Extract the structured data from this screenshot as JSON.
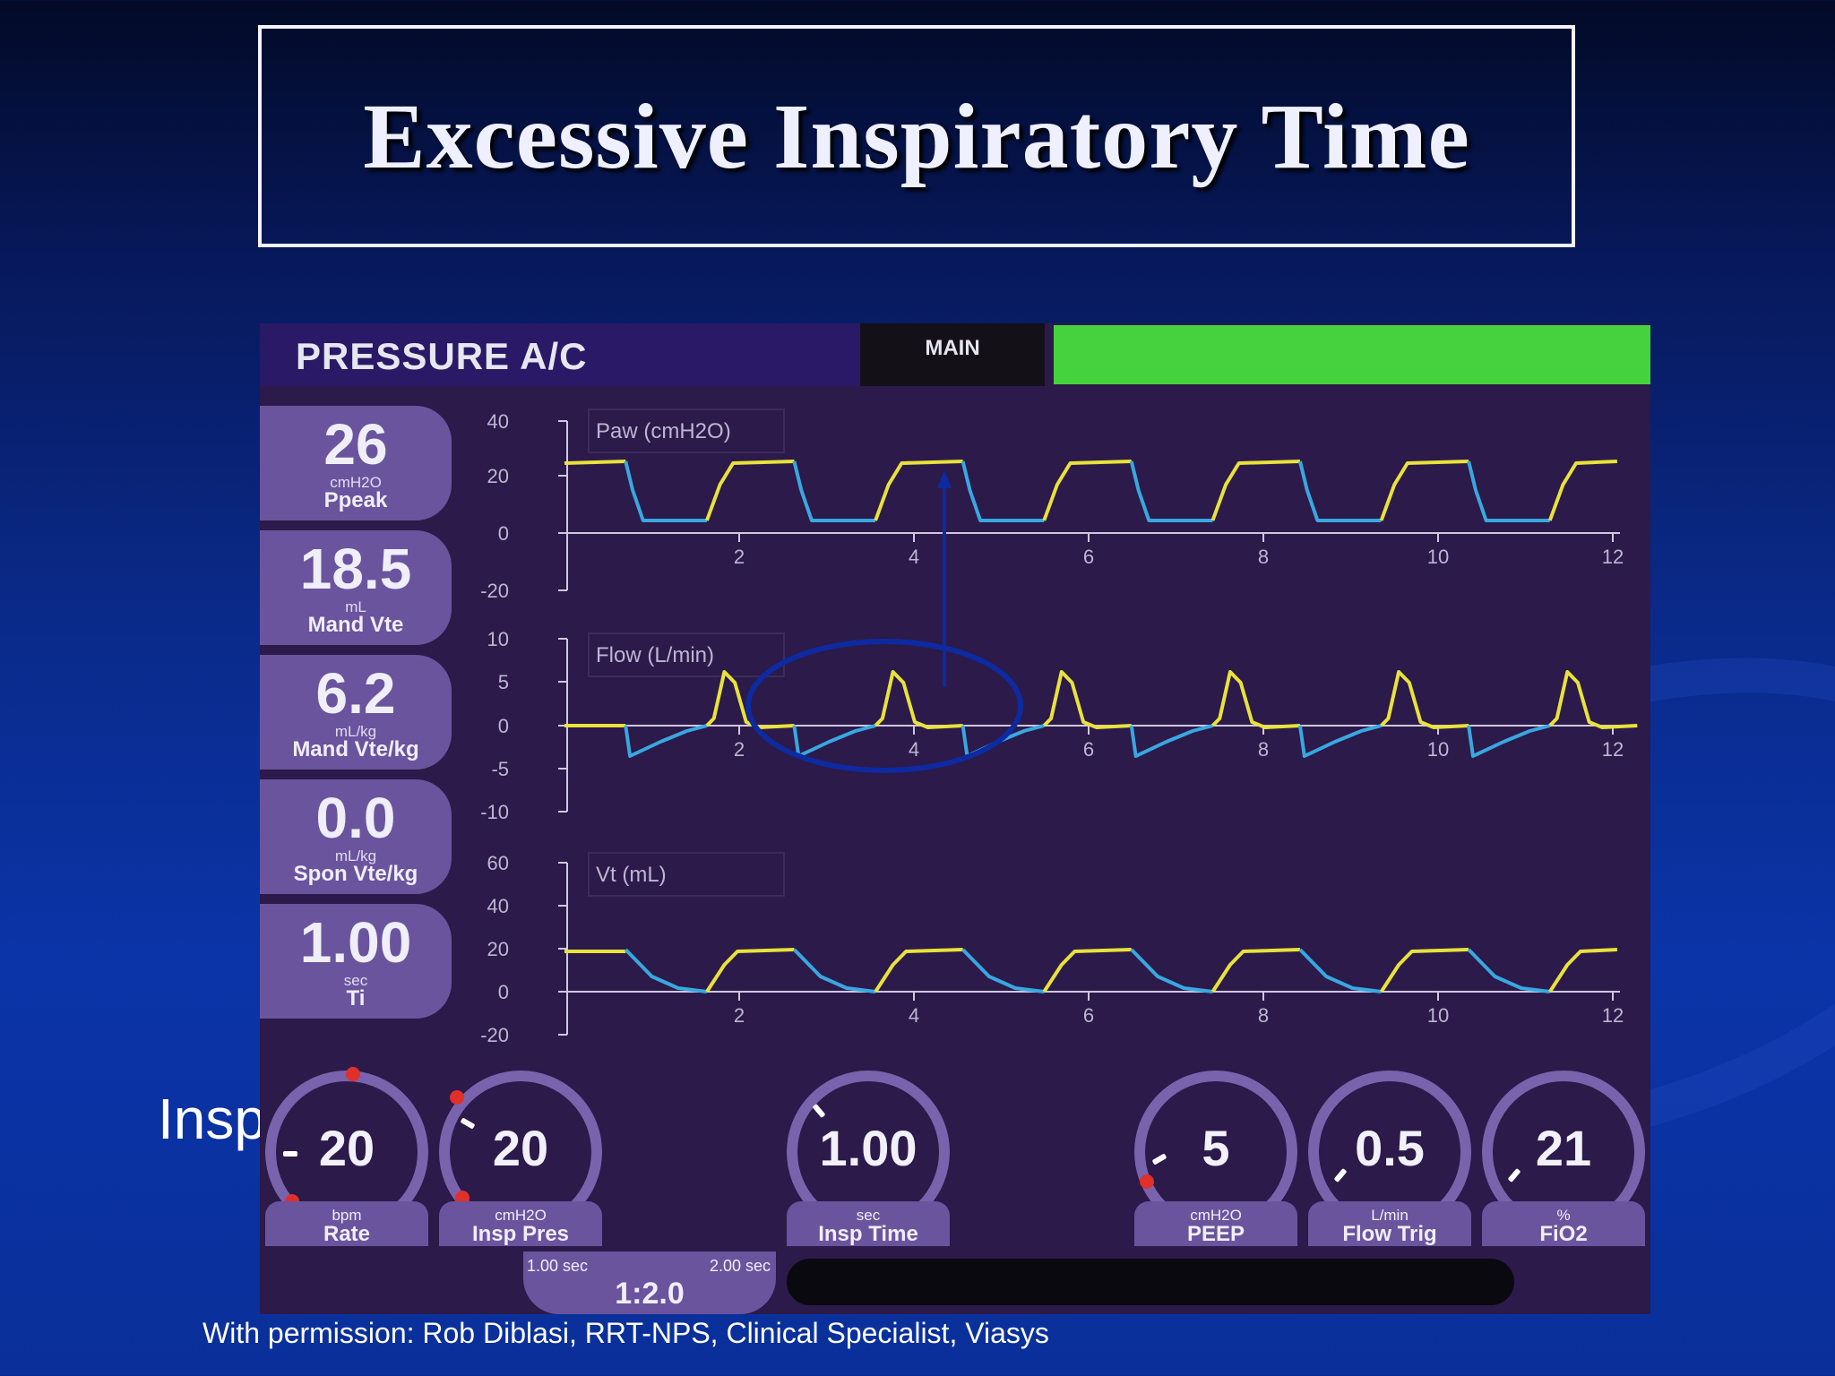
{
  "slide": {
    "title": "Excessive Inspiratory Time",
    "behind_text": "Insp",
    "credit": "With permission: Rob Diblasi, RRT-NPS, Clinical Specialist, Viasys"
  },
  "ventilator": {
    "mode": "PRESSURE A/C",
    "tab": "MAIN",
    "status_color": "#46d23f",
    "monitors": [
      {
        "value": "26",
        "unit": "cmH2O",
        "name": "Ppeak"
      },
      {
        "value": "18.5",
        "unit": "mL",
        "name": "Mand Vte"
      },
      {
        "value": "6.2",
        "unit": "mL/kg",
        "name": "Mand Vte/kg"
      },
      {
        "value": "0.0",
        "unit": "mL/kg",
        "name": "Spon Vte/kg"
      },
      {
        "value": "1.00",
        "unit": "sec",
        "name": "Ti"
      }
    ],
    "controls": [
      {
        "value": "20",
        "unit": "bpm",
        "name": "Rate"
      },
      {
        "value": "20",
        "unit": "cmH2O",
        "name": "Insp Pres"
      },
      {
        "value": "1.00",
        "unit": "sec",
        "name": "Insp Time"
      },
      {
        "value": "5",
        "unit": "cmH2O",
        "name": "PEEP"
      },
      {
        "value": "0.5",
        "unit": "L/min",
        "name": "Flow Trig"
      },
      {
        "value": "21",
        "unit": "%",
        "name": "FiO2"
      }
    ],
    "ie": {
      "insp": "1.00 sec",
      "exp": "2.00 sec",
      "ratio": "1:2.0"
    }
  },
  "waveforms": {
    "x_ticks": [
      "2",
      "4",
      "6",
      "8",
      "10",
      "12"
    ],
    "paw": {
      "label": "Paw (cmH2O)",
      "y_ticks": [
        "40",
        "20",
        "0",
        "-20"
      ]
    },
    "flow": {
      "label": "Flow (L/min)",
      "y_ticks": [
        "10",
        "5",
        "0",
        "-5",
        "-10"
      ]
    },
    "vt": {
      "label": "Vt (mL)",
      "y_ticks": [
        "60",
        "40",
        "20",
        "0",
        "-20"
      ]
    },
    "colors": {
      "inspiration": "#e9e23a",
      "expiration": "#39a7e0",
      "annotation": "#0d2aa0"
    }
  }
}
